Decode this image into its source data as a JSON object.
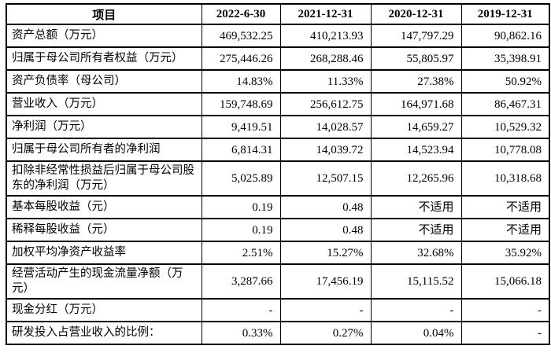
{
  "page": {
    "background": "#ffffff",
    "border_color": "#000000",
    "text_color": "#000000"
  },
  "table": {
    "columns": [
      "项目",
      "2022-6-30",
      "2021-12-31",
      "2020-12-31",
      "2019-12-31"
    ],
    "rows": [
      {
        "label": "资产总额（万元）",
        "tall": false,
        "values": [
          "469,532.25",
          "410,213.93",
          "147,797.29",
          "90,862.16"
        ]
      },
      {
        "label": "归属于母公司所有者权益（万元）",
        "tall": false,
        "values": [
          "275,446.26",
          "268,288.46",
          "55,805.97",
          "35,398.91"
        ]
      },
      {
        "label": "资产负债率（母公司）",
        "tall": false,
        "values": [
          "14.83%",
          "11.33%",
          "27.38%",
          "50.92%"
        ]
      },
      {
        "label": "营业收入（万元）",
        "tall": false,
        "values": [
          "159,748.69",
          "256,612.75",
          "164,971.68",
          "86,467.31"
        ]
      },
      {
        "label": "净利润（万元）",
        "tall": false,
        "values": [
          "9,419.51",
          "14,028.57",
          "14,659.27",
          "10,529.32"
        ]
      },
      {
        "label": "归属于母公司所有者的净利润",
        "tall": false,
        "values": [
          "6,814.31",
          "14,039.72",
          "14,523.94",
          "10,778.08"
        ]
      },
      {
        "label": "扣除非经常性损益后归属于母公司股东的净利润（万元）",
        "tall": true,
        "values": [
          "5,025.89",
          "12,507.15",
          "12,265.96",
          "10,318.68"
        ]
      },
      {
        "label": "基本每股收益（元）",
        "tall": false,
        "values": [
          "0.19",
          "0.48",
          "不适用",
          "不适用"
        ]
      },
      {
        "label": "稀释每股收益（元）",
        "tall": false,
        "values": [
          "0.19",
          "0.48",
          "不适用",
          "不适用"
        ]
      },
      {
        "label": "加权平均净资产收益率",
        "tall": false,
        "values": [
          "2.51%",
          "15.27%",
          "32.68%",
          "35.92%"
        ]
      },
      {
        "label": "经营活动产生的现金流量净额（万元）",
        "tall": true,
        "values": [
          "3,287.66",
          "17,456.19",
          "15,115.52",
          "15,066.18"
        ]
      },
      {
        "label": "现金分红（万元）",
        "tall": false,
        "values": [
          "-",
          "-",
          "-",
          "-"
        ]
      },
      {
        "label": "研发投入占营业收入的比例：",
        "tall": false,
        "values": [
          "0.33%",
          "0.27%",
          "0.04%",
          "-"
        ]
      }
    ]
  }
}
